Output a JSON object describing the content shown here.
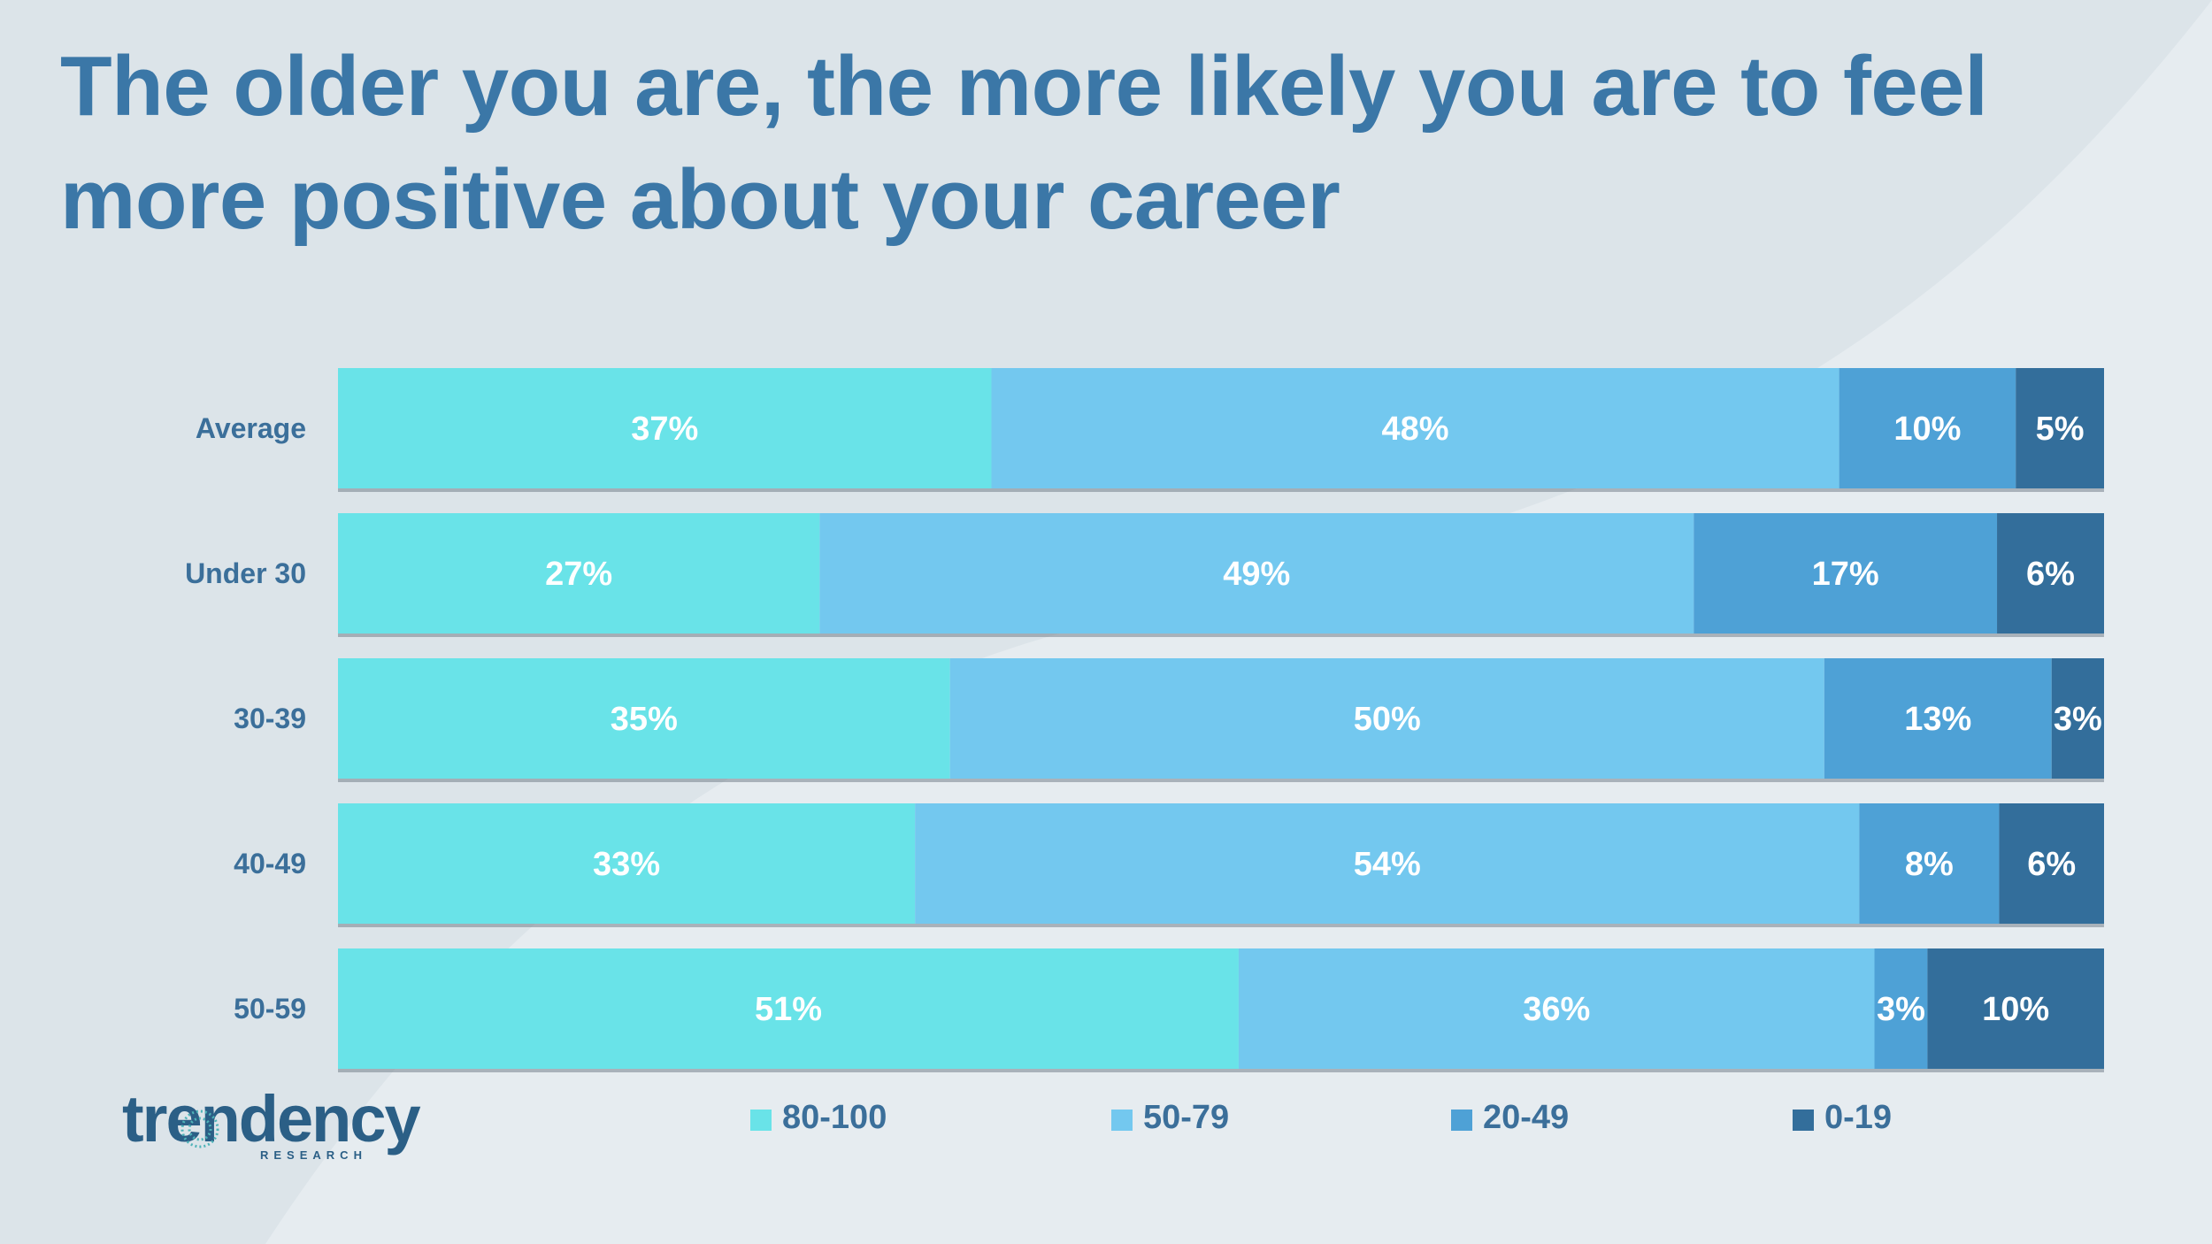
{
  "title": "The older you are, the more likely you are to feel more positive about your career",
  "logo": {
    "word": "trendency",
    "sub": "RESEARCH"
  },
  "colors": {
    "background": "#dce4e9",
    "swoosh": "#e6ecf0",
    "title": "#3b77a7",
    "label": "#3b6f9a",
    "series": [
      "#69e3e8",
      "#73c8ef",
      "#4ea1d6",
      "#336e9b"
    ]
  },
  "chart_data": {
    "type": "bar",
    "orientation": "horizontal",
    "stacked": true,
    "title": "The older you are, the more likely you are to feel more positive about your career",
    "categories": [
      "Average",
      "Under 30",
      "30-39",
      "40-49",
      "50-59"
    ],
    "series": [
      {
        "name": "80-100",
        "values": [
          37,
          27,
          35,
          33,
          51
        ],
        "labels": [
          "37%",
          "27%",
          "35%",
          "33%",
          "51%"
        ]
      },
      {
        "name": "50-79",
        "values": [
          48,
          49,
          50,
          54,
          36
        ],
        "labels": [
          "48%",
          "49%",
          "50%",
          "54%",
          "36%"
        ]
      },
      {
        "name": "20-49",
        "values": [
          10,
          17,
          13,
          8,
          3
        ],
        "labels": [
          "10%",
          "17%",
          "13%",
          "8%",
          "3%"
        ]
      },
      {
        "name": "0-19",
        "values": [
          5,
          6,
          3,
          6,
          10
        ],
        "labels": [
          "5%",
          "6%",
          "3%",
          "6%",
          "10%"
        ]
      }
    ],
    "xlim": [
      0,
      100
    ],
    "legend": "bottom",
    "grid": false
  }
}
